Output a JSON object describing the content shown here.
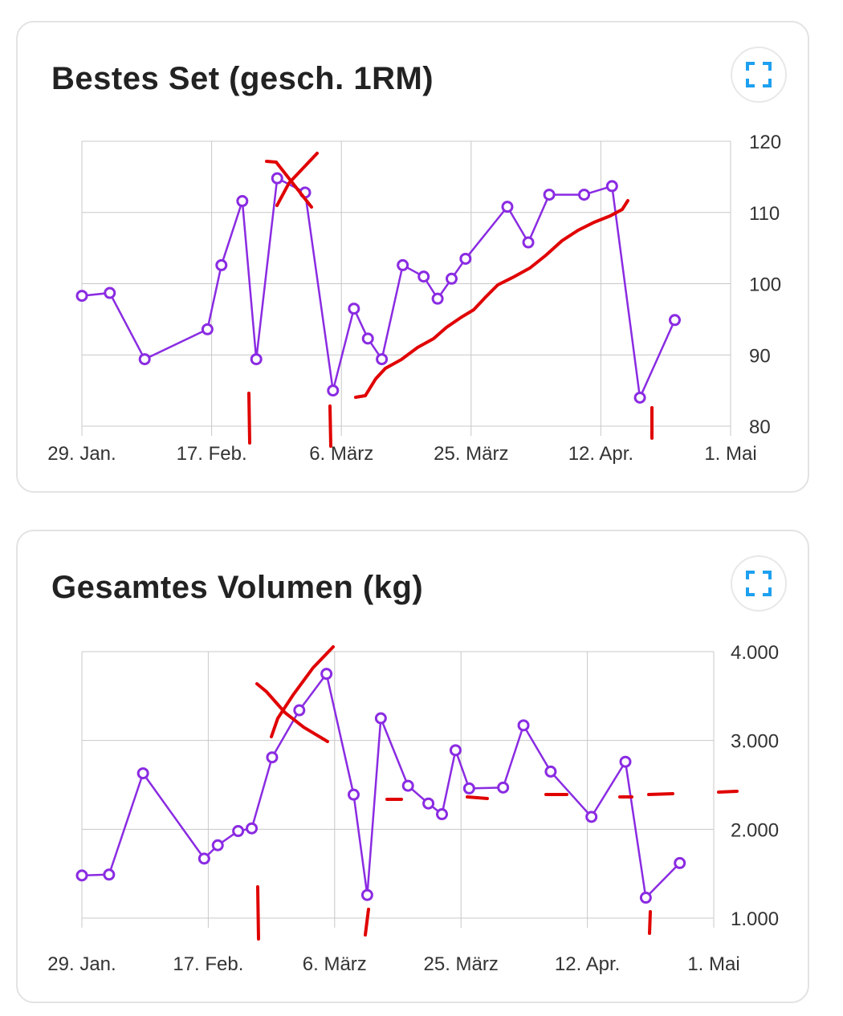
{
  "colors": {
    "series": "#8a2be2",
    "annotation": "#e00000",
    "grid": "#c8c8c8"
  },
  "icons": {
    "expand": "fullscreen-icon"
  },
  "charts": [
    {
      "title": "Bestes Set (gesch. 1RM)",
      "chart_data": {
        "type": "line",
        "title": "Bestes Set (gesch. 1RM)",
        "x_axis": {
          "type": "date",
          "min": "2024-01-29",
          "max": "2024-05-01",
          "tick_labels": [
            "29. Jan.",
            "17. Feb.",
            "6. März",
            "25. März",
            "12. Apr.",
            "1. Mai"
          ]
        },
        "y_axis": {
          "position": "right",
          "min": 80,
          "max": 120,
          "ticks": [
            80,
            90,
            100,
            110,
            120
          ],
          "tick_labels": [
            "80",
            "90",
            "100",
            "110",
            "120"
          ]
        },
        "grid": true,
        "series": [
          {
            "points": [
              [
                "2024-01-29",
                98.3
              ],
              [
                "2024-02-02",
                98.7
              ],
              [
                "2024-02-07",
                89.4
              ],
              [
                "2024-02-16",
                93.6
              ],
              [
                "2024-02-18",
                102.6
              ],
              [
                "2024-02-21",
                111.6
              ],
              [
                "2024-02-23",
                89.4
              ],
              [
                "2024-02-26",
                114.8
              ],
              [
                "2024-03-01",
                112.8
              ],
              [
                "2024-03-05",
                85.0
              ],
              [
                "2024-03-08",
                96.5
              ],
              [
                "2024-03-10",
                92.3
              ],
              [
                "2024-03-12",
                89.4
              ],
              [
                "2024-03-15",
                102.6
              ],
              [
                "2024-03-18",
                101.0
              ],
              [
                "2024-03-20",
                97.9
              ],
              [
                "2024-03-22",
                100.7
              ],
              [
                "2024-03-24",
                103.5
              ],
              [
                "2024-03-30",
                110.8
              ],
              [
                "2024-04-02",
                105.8
              ],
              [
                "2024-04-05",
                112.5
              ],
              [
                "2024-04-10",
                112.5
              ],
              [
                "2024-04-14",
                113.7
              ],
              [
                "2024-04-18",
                84.0
              ],
              [
                "2024-04-23",
                94.9
              ]
            ]
          }
        ]
      }
    },
    {
      "title": "Gesamtes Volumen (kg)",
      "chart_data": {
        "type": "line",
        "title": "Gesamtes Volumen (kg)",
        "x_axis": {
          "type": "date",
          "min": "2024-01-29",
          "max": "2024-05-01",
          "tick_labels": [
            "29. Jan.",
            "17. Feb.",
            "6. März",
            "25. März",
            "12. Apr.",
            "1. Mai"
          ]
        },
        "y_axis": {
          "position": "right",
          "min": 1000,
          "max": 4000,
          "ticks": [
            1000,
            2000,
            3000,
            4000
          ],
          "tick_labels": [
            "1.000",
            "2.000",
            "3.000",
            "4.000"
          ]
        },
        "grid": true,
        "series": [
          {
            "points": [
              [
                "2024-01-29",
                1480
              ],
              [
                "2024-02-02",
                1490
              ],
              [
                "2024-02-07",
                2630
              ],
              [
                "2024-02-16",
                1670
              ],
              [
                "2024-02-18",
                1820
              ],
              [
                "2024-02-21",
                1980
              ],
              [
                "2024-02-23",
                2010
              ],
              [
                "2024-02-26",
                2810
              ],
              [
                "2024-03-01",
                3340
              ],
              [
                "2024-03-05",
                3750
              ],
              [
                "2024-03-09",
                2390
              ],
              [
                "2024-03-11",
                1260
              ],
              [
                "2024-03-13",
                3250
              ],
              [
                "2024-03-17",
                2490
              ],
              [
                "2024-03-20",
                2290
              ],
              [
                "2024-03-22",
                2170
              ],
              [
                "2024-03-24",
                2890
              ],
              [
                "2024-03-26",
                2460
              ],
              [
                "2024-03-31",
                2470
              ],
              [
                "2024-04-03",
                3170
              ],
              [
                "2024-04-07",
                2650
              ],
              [
                "2024-04-13",
                2140
              ],
              [
                "2024-04-18",
                2760
              ],
              [
                "2024-04-21",
                1230
              ],
              [
                "2024-04-26",
                1620
              ]
            ]
          }
        ]
      }
    }
  ]
}
